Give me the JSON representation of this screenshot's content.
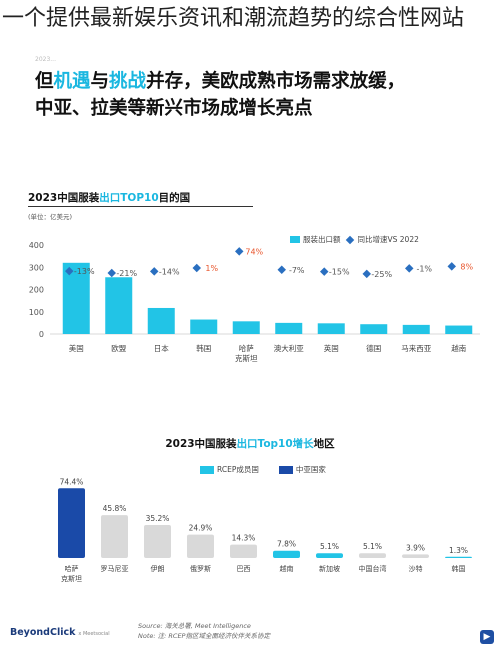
{
  "overlay_title": "一个提供最新娱乐资讯和潮流趋势的综合性网站",
  "top_caption": "2023...",
  "headline": {
    "part1": "但",
    "hl1": "机遇",
    "part2": "与",
    "hl2": "挑战",
    "part3": "并存，美欧成熟市场需求放缓，",
    "line2": "中亚、拉美等新兴市场成增长亮点"
  },
  "chart1_title": {
    "prefix": "2023中国服装",
    "accent": "出口TOP10",
    "suffix": "目的国"
  },
  "chart1_unit": "(单位：亿美元)",
  "chart1_legend": {
    "bar": "服装出口额",
    "point": "同比增速VS 2022"
  },
  "chart2_title": {
    "prefix": "2023中国服装",
    "accent": "出口Top10增长",
    "suffix": "地区"
  },
  "chart2_legend": {
    "a": "RCEP成员国",
    "b": "中亚国家"
  },
  "colors": {
    "cyan": "#22c4e6",
    "navy": "#1a4aa8",
    "gray": "#d9d9d9",
    "marker": "#2a6fc0"
  },
  "chart_data": [
    {
      "type": "bar",
      "title": "2023中国服装出口TOP10目的国",
      "ylabel": "(单位：亿美元)",
      "categories": [
        "美国",
        "欧盟",
        "日本",
        "韩国",
        "哈萨克斯坦",
        "澳大利亚",
        "英国",
        "德国",
        "马来西亚",
        "越南"
      ],
      "ylim": [
        0,
        400
      ],
      "yticks": [
        0,
        100,
        200,
        300,
        400
      ],
      "series": [
        {
          "name": "服装出口额",
          "values": [
            320,
            255,
            117,
            65,
            57,
            50,
            48,
            44,
            41,
            38
          ]
        },
        {
          "name": "同比增速VS 2022",
          "type": "scatter",
          "labels": [
            "-13%",
            "-21%",
            "-14%",
            "1%",
            "74%",
            "-7%",
            "-15%",
            "-25%",
            "-1%",
            "8%"
          ],
          "values": [
            -13,
            -21,
            -14,
            1,
            74,
            -7,
            -15,
            -25,
            -1,
            8
          ]
        }
      ],
      "legend": "top-right"
    },
    {
      "type": "bar",
      "title": "2023中国服装出口Top10增长地区",
      "categories": [
        "哈萨克斯坦",
        "罗马尼亚",
        "伊朗",
        "俄罗斯",
        "巴西",
        "越南",
        "新加坡",
        "中国台湾",
        "沙特",
        "韩国"
      ],
      "values": [
        74.4,
        45.8,
        35.2,
        24.9,
        14.3,
        7.8,
        5.1,
        5.1,
        3.9,
        1.3
      ],
      "labels": [
        "74.4%",
        "45.8%",
        "35.2%",
        "24.9%",
        "14.3%",
        "7.8%",
        "5.1%",
        "5.1%",
        "3.9%",
        "1.3%"
      ],
      "groups": [
        "中亚国家",
        "gray",
        "gray",
        "gray",
        "gray",
        "RCEP成员国",
        "RCEP成员国",
        "gray",
        "gray",
        "RCEP成员国"
      ],
      "legend": "top-center"
    }
  ],
  "footer": {
    "logo": "BeyondClick",
    "logo_sub": "x Meetsocial",
    "source1": "Source: 海关总署, Meet Intelligence",
    "source2": "Note: 注: RCEP指区域全面经济伙伴关系协定"
  },
  "corner_icon": "play-icon"
}
